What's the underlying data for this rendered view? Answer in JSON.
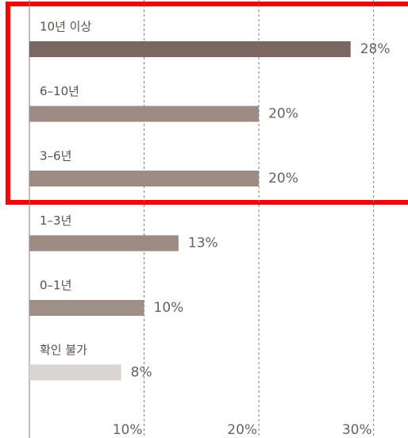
{
  "chart_data": {
    "type": "bar",
    "orientation": "horizontal",
    "categories": [
      "10년 이상",
      "6–10년",
      "3–6년",
      "1–3년",
      "0–1년",
      "확인 불가"
    ],
    "values": [
      28,
      20,
      20,
      13,
      10,
      8
    ],
    "value_labels": [
      "28%",
      "20%",
      "20%",
      "13%",
      "10%",
      "8%"
    ],
    "colors": [
      "#7b6760",
      "#9d8b84",
      "#9d8b84",
      "#9d8b84",
      "#a08f89",
      "#dad4d2"
    ],
    "xlim": [
      0,
      33
    ],
    "xticks": [
      {
        "value": 10,
        "label": "10%"
      },
      {
        "value": 20,
        "label": "20%"
      },
      {
        "value": 30,
        "label": "30%"
      }
    ],
    "grid": true
  }
}
